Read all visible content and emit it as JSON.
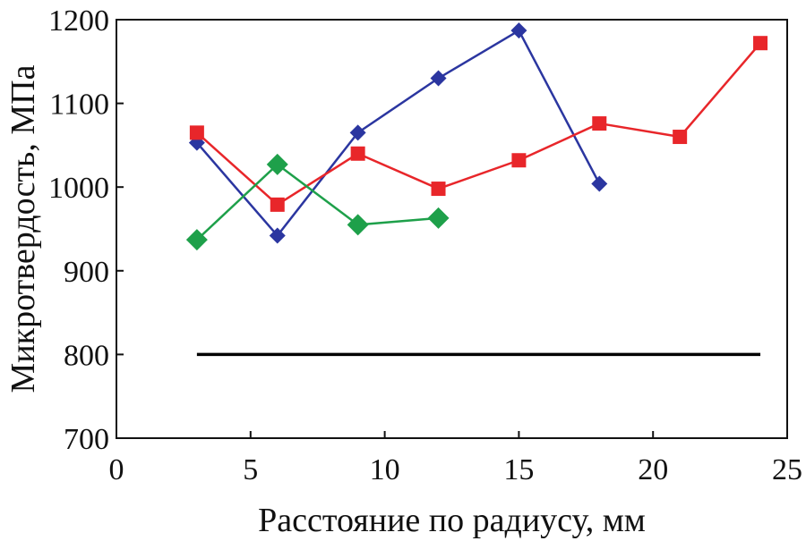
{
  "chart_data": {
    "type": "line",
    "title": "",
    "xlabel": "Расстояние по радиусу, мм",
    "ylabel": "Микротвердость, МПа",
    "xlim": [
      0,
      25
    ],
    "ylim": [
      700,
      1200
    ],
    "x_ticks": [
      0,
      5,
      10,
      15,
      20,
      25
    ],
    "y_ticks": [
      700,
      800,
      900,
      1000,
      1100,
      1200
    ],
    "grid": false,
    "legend": "none",
    "series": [
      {
        "color": "#2b36a0",
        "marker": "diamond-small",
        "x": [
          3,
          6,
          9,
          12,
          15,
          18
        ],
        "y": [
          1053,
          942,
          1065,
          1130,
          1187,
          1004
        ]
      },
      {
        "color": "#e8262a",
        "marker": "square",
        "x": [
          3,
          6,
          9,
          12,
          15,
          18,
          21,
          24
        ],
        "y": [
          1065,
          979,
          1040,
          998,
          1032,
          1076,
          1060,
          1172
        ]
      },
      {
        "color": "#1ea04a",
        "marker": "diamond",
        "x": [
          3,
          6,
          9,
          12
        ],
        "y": [
          937,
          1027,
          955,
          963
        ]
      },
      {
        "color": "#000000",
        "marker": "none",
        "x": [
          3,
          24
        ],
        "y": [
          800,
          800
        ]
      }
    ]
  }
}
